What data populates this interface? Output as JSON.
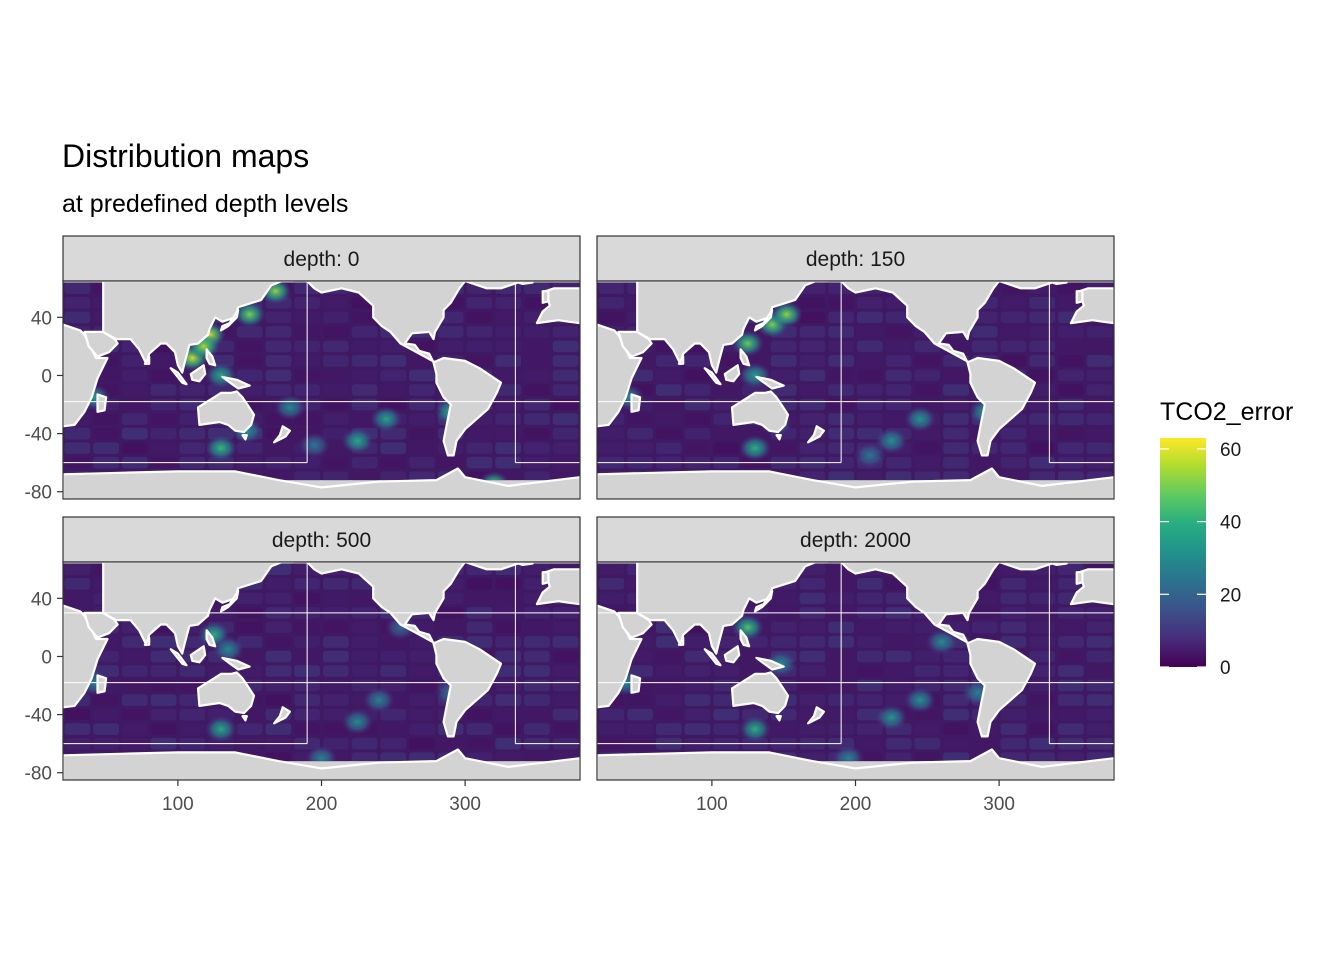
{
  "chart_data": {
    "type": "heatmap",
    "title": "Distribution maps",
    "subtitle": "at predefined depth levels",
    "facet_prefix": "depth: ",
    "facets": [
      {
        "depth": "0",
        "hotspots": [
          {
            "lon": 122,
            "lat": 28,
            "value": 60
          },
          {
            "lon": 110,
            "lat": 12,
            "value": 58
          },
          {
            "lon": 118,
            "lat": 20,
            "value": 55
          },
          {
            "lon": 130,
            "lat": 0,
            "value": 38
          },
          {
            "lon": 150,
            "lat": 42,
            "value": 50
          },
          {
            "lon": 168,
            "lat": 58,
            "value": 52
          },
          {
            "lon": 42,
            "lat": -15,
            "value": 35
          },
          {
            "lon": 130,
            "lat": -50,
            "value": 42
          },
          {
            "lon": 148,
            "lat": -38,
            "value": 32
          },
          {
            "lon": 225,
            "lat": -45,
            "value": 38
          },
          {
            "lon": 245,
            "lat": -30,
            "value": 36
          },
          {
            "lon": 290,
            "lat": -25,
            "value": 40
          },
          {
            "lon": 320,
            "lat": -75,
            "value": 50
          },
          {
            "lon": 178,
            "lat": -22,
            "value": 30
          },
          {
            "lon": 195,
            "lat": -48,
            "value": 25
          }
        ]
      },
      {
        "depth": "150",
        "hotspots": [
          {
            "lon": 125,
            "lat": 22,
            "value": 48
          },
          {
            "lon": 142,
            "lat": 35,
            "value": 50
          },
          {
            "lon": 152,
            "lat": 42,
            "value": 52
          },
          {
            "lon": 130,
            "lat": 0,
            "value": 35
          },
          {
            "lon": 130,
            "lat": -50,
            "value": 40
          },
          {
            "lon": 145,
            "lat": -33,
            "value": 30
          },
          {
            "lon": 42,
            "lat": -15,
            "value": 30
          },
          {
            "lon": 225,
            "lat": -45,
            "value": 32
          },
          {
            "lon": 245,
            "lat": -30,
            "value": 33
          },
          {
            "lon": 290,
            "lat": -25,
            "value": 35
          },
          {
            "lon": 210,
            "lat": -55,
            "value": 25
          }
        ]
      },
      {
        "depth": "500",
        "hotspots": [
          {
            "lon": 125,
            "lat": 15,
            "value": 40
          },
          {
            "lon": 135,
            "lat": 5,
            "value": 30
          },
          {
            "lon": 130,
            "lat": -50,
            "value": 38
          },
          {
            "lon": 225,
            "lat": -45,
            "value": 30
          },
          {
            "lon": 240,
            "lat": -30,
            "value": 28
          },
          {
            "lon": 200,
            "lat": -70,
            "value": 28
          },
          {
            "lon": 42,
            "lat": -18,
            "value": 28
          },
          {
            "lon": 255,
            "lat": 20,
            "value": 22
          },
          {
            "lon": 290,
            "lat": -25,
            "value": 25
          }
        ]
      },
      {
        "depth": "2000",
        "hotspots": [
          {
            "lon": 125,
            "lat": 20,
            "value": 45
          },
          {
            "lon": 148,
            "lat": -5,
            "value": 30
          },
          {
            "lon": 130,
            "lat": -50,
            "value": 40
          },
          {
            "lon": 40,
            "lat": -18,
            "value": 30
          },
          {
            "lon": 225,
            "lat": -42,
            "value": 33
          },
          {
            "lon": 260,
            "lat": 10,
            "value": 30
          },
          {
            "lon": 245,
            "lat": -30,
            "value": 32
          },
          {
            "lon": 285,
            "lat": -25,
            "value": 28
          },
          {
            "lon": 195,
            "lat": -70,
            "value": 28
          }
        ]
      }
    ],
    "x_axis": {
      "lim": [
        20,
        380
      ],
      "ticks": [
        100,
        200,
        300
      ]
    },
    "y_axis": {
      "lim": [
        -85,
        65
      ],
      "ticks": [
        40,
        0,
        -40,
        -80
      ]
    },
    "legend": {
      "title": "TCO2_error",
      "position": "right",
      "min": 0,
      "max": 63,
      "ticks": [
        0,
        20,
        40,
        60
      ],
      "colors": [
        "#440154",
        "#472d7b",
        "#3b528b",
        "#2c728e",
        "#21918c",
        "#28ae80",
        "#5ec962",
        "#addc30",
        "#fde725"
      ]
    },
    "colors": {
      "land": "#d3d3d3",
      "ocean_base": "#3f1a63",
      "strip": "#d9d9d9",
      "panel_border": "#333333"
    }
  }
}
